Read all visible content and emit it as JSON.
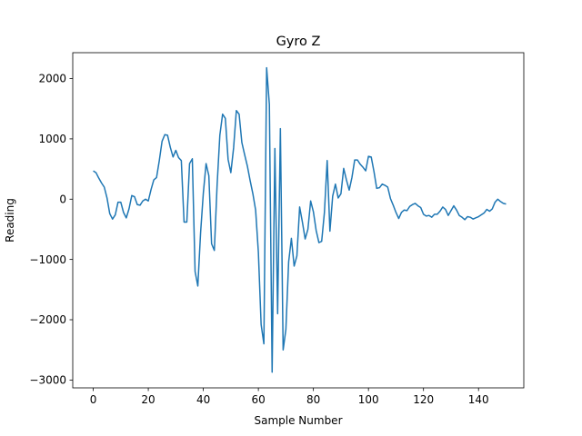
{
  "chart_data": {
    "type": "line",
    "title": "Gyro Z",
    "xlabel": "Sample Number",
    "ylabel": "Reading",
    "xlim": [
      -7.45,
      156.45
    ],
    "ylim": [
      -3130,
      2430
    ],
    "xticks": [
      0,
      20,
      40,
      60,
      80,
      100,
      120,
      140
    ],
    "yticks": [
      -3000,
      -2000,
      -1000,
      0,
      1000,
      2000
    ],
    "xtick_labels": [
      "0",
      "20",
      "40",
      "60",
      "80",
      "100",
      "120",
      "140"
    ],
    "ytick_labels": [
      "−3000",
      "−2000",
      "−1000",
      "0",
      "1000",
      "2000"
    ],
    "grid": false,
    "legend": "none",
    "line_color": "#1f77b4",
    "series": [
      {
        "values": [
          470,
          440,
          350,
          270,
          200,
          20,
          -240,
          -330,
          -260,
          -50,
          -50,
          -220,
          -310,
          -160,
          60,
          40,
          -90,
          -100,
          -30,
          0,
          -30,
          160,
          320,
          360,
          640,
          960,
          1070,
          1060,
          860,
          700,
          810,
          690,
          640,
          -380,
          -380,
          590,
          670,
          -1200,
          -1440,
          -560,
          100,
          590,
          390,
          -740,
          -850,
          230,
          1060,
          1410,
          1340,
          660,
          440,
          850,
          1470,
          1410,
          940,
          740,
          550,
          310,
          90,
          -180,
          -880,
          -2080,
          -2400,
          2180,
          1570,
          -2870,
          840,
          -1900,
          1170,
          -2500,
          -2160,
          -1040,
          -650,
          -1110,
          -940,
          -130,
          -380,
          -660,
          -500,
          -30,
          -210,
          -520,
          -720,
          -700,
          -220,
          640,
          -530,
          50,
          250,
          20,
          90,
          510,
          320,
          150,
          360,
          650,
          650,
          580,
          530,
          470,
          710,
          700,
          460,
          180,
          190,
          250,
          230,
          200,
          10,
          -100,
          -220,
          -320,
          -220,
          -180,
          -190,
          -120,
          -90,
          -70,
          -110,
          -140,
          -250,
          -280,
          -270,
          -300,
          -250,
          -250,
          -200,
          -130,
          -170,
          -270,
          -190,
          -110,
          -180,
          -270,
          -300,
          -340,
          -290,
          -300,
          -330,
          -310,
          -290,
          -260,
          -230,
          -170,
          -200,
          -160,
          -50,
          0,
          -40,
          -70,
          -80
        ]
      }
    ]
  }
}
